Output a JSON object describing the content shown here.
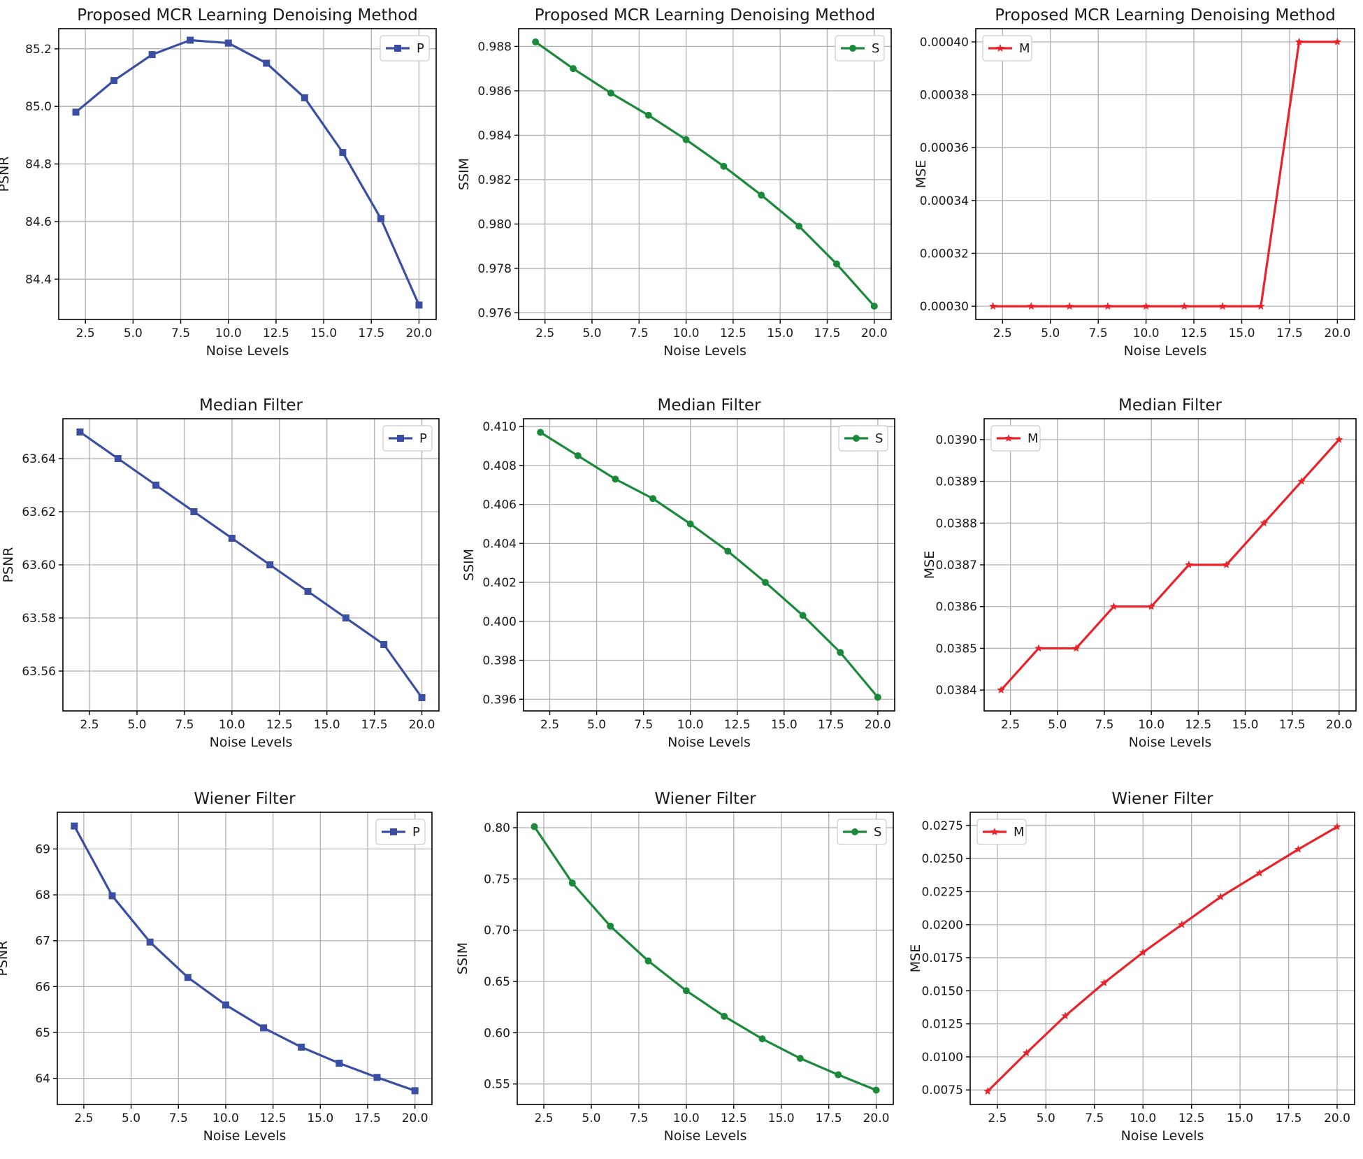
{
  "figure": {
    "colors": {
      "P": "#3a4fa3",
      "S": "#1a8a3a",
      "M": "#e8232a"
    }
  },
  "chart_data": [
    {
      "type": "line",
      "title": "Proposed MCR Learning Denoising Method",
      "xlabel": "Noise Levels",
      "ylabel": "PSNR",
      "x": [
        2,
        4,
        6,
        8,
        10,
        12,
        14,
        16,
        18,
        20
      ],
      "xlim": [
        1.1,
        20.9
      ],
      "xticks": [
        2.5,
        5.0,
        7.5,
        10.0,
        12.5,
        15.0,
        17.5,
        20.0
      ],
      "xtick_labels": [
        "2.5",
        "5.0",
        "7.5",
        "10.0",
        "12.5",
        "15.0",
        "17.5",
        "20.0"
      ],
      "ylim": [
        84.26,
        85.27
      ],
      "yticks": [
        84.4,
        84.6,
        84.8,
        85.0,
        85.2
      ],
      "ytick_labels": [
        "84.4",
        "84.6",
        "84.8",
        "85.0",
        "85.2"
      ],
      "grid": true,
      "legend": "top-right",
      "series": [
        {
          "name": "P",
          "marker": "square",
          "color": "#3a4fa3",
          "values": [
            84.98,
            85.09,
            85.18,
            85.23,
            85.22,
            85.15,
            85.03,
            84.84,
            84.61,
            84.31
          ]
        }
      ]
    },
    {
      "type": "line",
      "title": "Proposed MCR Learning Denoising Method",
      "xlabel": "Noise Levels",
      "ylabel": "SSIM",
      "x": [
        2,
        4,
        6,
        8,
        10,
        12,
        14,
        16,
        18,
        20
      ],
      "xlim": [
        1.1,
        20.9
      ],
      "xticks": [
        2.5,
        5.0,
        7.5,
        10.0,
        12.5,
        15.0,
        17.5,
        20.0
      ],
      "xtick_labels": [
        "2.5",
        "5.0",
        "7.5",
        "10.0",
        "12.5",
        "15.0",
        "17.5",
        "20.0"
      ],
      "ylim": [
        0.9757,
        0.9888
      ],
      "yticks": [
        0.976,
        0.978,
        0.98,
        0.982,
        0.984,
        0.986,
        0.988
      ],
      "ytick_labels": [
        "0.976",
        "0.978",
        "0.980",
        "0.982",
        "0.984",
        "0.986",
        "0.988"
      ],
      "grid": true,
      "legend": "top-right",
      "series": [
        {
          "name": "S",
          "marker": "circle",
          "color": "#1a8a3a",
          "values": [
            0.9882,
            0.987,
            0.9859,
            0.9849,
            0.9838,
            0.9826,
            0.9813,
            0.9799,
            0.9782,
            0.9763
          ]
        }
      ]
    },
    {
      "type": "line",
      "title": "Proposed MCR Learning Denoising Method",
      "xlabel": "Noise Levels",
      "ylabel": "MSE",
      "x": [
        2,
        4,
        6,
        8,
        10,
        12,
        14,
        16,
        18,
        20
      ],
      "xlim": [
        1.1,
        20.9
      ],
      "xticks": [
        2.5,
        5.0,
        7.5,
        10.0,
        12.5,
        15.0,
        17.5,
        20.0
      ],
      "xtick_labels": [
        "2.5",
        "5.0",
        "7.5",
        "10.0",
        "12.5",
        "15.0",
        "17.5",
        "20.0"
      ],
      "ylim": [
        0.000295,
        0.000405
      ],
      "yticks": [
        0.0003,
        0.00032,
        0.00034,
        0.00036,
        0.00038,
        0.0004
      ],
      "ytick_labels": [
        "0.00030",
        "0.00032",
        "0.00034",
        "0.00036",
        "0.00038",
        "0.00040"
      ],
      "grid": true,
      "legend": "top-left",
      "series": [
        {
          "name": "M",
          "marker": "star",
          "color": "#e8232a",
          "values": [
            0.0003,
            0.0003,
            0.0003,
            0.0003,
            0.0003,
            0.0003,
            0.0003,
            0.0003,
            0.0004,
            0.0004
          ]
        }
      ]
    },
    {
      "type": "line",
      "title": "Median Filter",
      "xlabel": "Noise Levels",
      "ylabel": "PSNR",
      "x": [
        2,
        4,
        6,
        8,
        10,
        12,
        14,
        16,
        18,
        20
      ],
      "xlim": [
        1.1,
        20.9
      ],
      "xticks": [
        2.5,
        5.0,
        7.5,
        10.0,
        12.5,
        15.0,
        17.5,
        20.0
      ],
      "xtick_labels": [
        "2.5",
        "5.0",
        "7.5",
        "10.0",
        "12.5",
        "15.0",
        "17.5",
        "20.0"
      ],
      "ylim": [
        63.545,
        63.655
      ],
      "yticks": [
        63.56,
        63.58,
        63.6,
        63.62,
        63.64
      ],
      "ytick_labels": [
        "63.56",
        "63.58",
        "63.60",
        "63.62",
        "63.64"
      ],
      "grid": true,
      "legend": "top-right",
      "series": [
        {
          "name": "P",
          "marker": "square",
          "color": "#3a4fa3",
          "values": [
            63.65,
            63.64,
            63.63,
            63.62,
            63.61,
            63.6,
            63.59,
            63.58,
            63.57,
            63.55
          ]
        }
      ]
    },
    {
      "type": "line",
      "title": "Median Filter",
      "xlabel": "Noise Levels",
      "ylabel": "SSIM",
      "x": [
        2,
        4,
        6,
        8,
        10,
        12,
        14,
        16,
        18,
        20
      ],
      "xlim": [
        1.1,
        20.9
      ],
      "xticks": [
        2.5,
        5.0,
        7.5,
        10.0,
        12.5,
        15.0,
        17.5,
        20.0
      ],
      "xtick_labels": [
        "2.5",
        "5.0",
        "7.5",
        "10.0",
        "12.5",
        "15.0",
        "17.5",
        "20.0"
      ],
      "ylim": [
        0.3954,
        0.4104
      ],
      "yticks": [
        0.396,
        0.398,
        0.4,
        0.402,
        0.404,
        0.406,
        0.408,
        0.41
      ],
      "ytick_labels": [
        "0.396",
        "0.398",
        "0.400",
        "0.402",
        "0.404",
        "0.406",
        "0.408",
        "0.410"
      ],
      "grid": true,
      "legend": "top-right",
      "series": [
        {
          "name": "S",
          "marker": "circle",
          "color": "#1a8a3a",
          "values": [
            0.4097,
            0.4085,
            0.4073,
            0.4063,
            0.405,
            0.4036,
            0.402,
            0.4003,
            0.3984,
            0.3961
          ]
        }
      ]
    },
    {
      "type": "line",
      "title": "Median Filter",
      "xlabel": "Noise Levels",
      "ylabel": "MSE",
      "x": [
        2,
        4,
        6,
        8,
        10,
        12,
        14,
        16,
        18,
        20
      ],
      "xlim": [
        1.1,
        20.9
      ],
      "xticks": [
        2.5,
        5.0,
        7.5,
        10.0,
        12.5,
        15.0,
        17.5,
        20.0
      ],
      "xtick_labels": [
        "2.5",
        "5.0",
        "7.5",
        "10.0",
        "12.5",
        "15.0",
        "17.5",
        "20.0"
      ],
      "ylim": [
        0.03835,
        0.03905
      ],
      "yticks": [
        0.0384,
        0.0385,
        0.0386,
        0.0387,
        0.0388,
        0.0389,
        0.039
      ],
      "ytick_labels": [
        "0.0384",
        "0.0385",
        "0.0386",
        "0.0387",
        "0.0388",
        "0.0389",
        "0.0390"
      ],
      "grid": true,
      "legend": "top-left",
      "series": [
        {
          "name": "M",
          "marker": "star",
          "color": "#e8232a",
          "values": [
            0.0384,
            0.0385,
            0.0385,
            0.0386,
            0.0386,
            0.0387,
            0.0387,
            0.0388,
            0.0389,
            0.039
          ]
        }
      ]
    },
    {
      "type": "line",
      "title": "Wiener Filter",
      "xlabel": "Noise Levels",
      "ylabel": "PSNR",
      "x": [
        2,
        4,
        6,
        8,
        10,
        12,
        14,
        16,
        18,
        20
      ],
      "xlim": [
        1.1,
        20.9
      ],
      "xticks": [
        2.5,
        5.0,
        7.5,
        10.0,
        12.5,
        15.0,
        17.5,
        20.0
      ],
      "xtick_labels": [
        "2.5",
        "5.0",
        "7.5",
        "10.0",
        "12.5",
        "15.0",
        "17.5",
        "20.0"
      ],
      "ylim": [
        63.43,
        69.8
      ],
      "yticks": [
        64,
        65,
        66,
        67,
        68,
        69
      ],
      "ytick_labels": [
        "64",
        "65",
        "66",
        "67",
        "68",
        "69"
      ],
      "grid": true,
      "legend": "top-right",
      "series": [
        {
          "name": "P",
          "marker": "square",
          "color": "#3a4fa3",
          "values": [
            69.5,
            67.98,
            66.97,
            66.2,
            65.6,
            65.1,
            64.68,
            64.33,
            64.02,
            63.73
          ]
        }
      ]
    },
    {
      "type": "line",
      "title": "Wiener Filter",
      "xlabel": "Noise Levels",
      "ylabel": "SSIM",
      "x": [
        2,
        4,
        6,
        8,
        10,
        12,
        14,
        16,
        18,
        20
      ],
      "xlim": [
        1.1,
        20.9
      ],
      "xticks": [
        2.5,
        5.0,
        7.5,
        10.0,
        12.5,
        15.0,
        17.5,
        20.0
      ],
      "xtick_labels": [
        "2.5",
        "5.0",
        "7.5",
        "10.0",
        "12.5",
        "15.0",
        "17.5",
        "20.0"
      ],
      "ylim": [
        0.53,
        0.815
      ],
      "yticks": [
        0.55,
        0.6,
        0.65,
        0.7,
        0.75,
        0.8
      ],
      "ytick_labels": [
        "0.55",
        "0.60",
        "0.65",
        "0.70",
        "0.75",
        "0.80"
      ],
      "grid": true,
      "legend": "top-right",
      "series": [
        {
          "name": "S",
          "marker": "circle",
          "color": "#1a8a3a",
          "values": [
            0.801,
            0.746,
            0.704,
            0.67,
            0.641,
            0.616,
            0.594,
            0.575,
            0.559,
            0.544
          ]
        }
      ]
    },
    {
      "type": "line",
      "title": "Wiener Filter",
      "xlabel": "Noise Levels",
      "ylabel": "MSE",
      "x": [
        2,
        4,
        6,
        8,
        10,
        12,
        14,
        16,
        18,
        20
      ],
      "xlim": [
        1.1,
        20.9
      ],
      "xticks": [
        2.5,
        5.0,
        7.5,
        10.0,
        12.5,
        15.0,
        17.5,
        20.0
      ],
      "xtick_labels": [
        "2.5",
        "5.0",
        "7.5",
        "10.0",
        "12.5",
        "15.0",
        "17.5",
        "20.0"
      ],
      "ylim": [
        0.0064,
        0.0285
      ],
      "yticks": [
        0.0075,
        0.01,
        0.0125,
        0.015,
        0.0175,
        0.02,
        0.0225,
        0.025,
        0.0275
      ],
      "ytick_labels": [
        "0.0075",
        "0.0100",
        "0.0125",
        "0.0150",
        "0.0175",
        "0.0200",
        "0.0225",
        "0.0250",
        "0.0275"
      ],
      "grid": true,
      "legend": "top-left",
      "series": [
        {
          "name": "M",
          "marker": "star",
          "color": "#e8232a",
          "values": [
            0.0074,
            0.0103,
            0.0131,
            0.0156,
            0.0179,
            0.02,
            0.0221,
            0.0239,
            0.0257,
            0.0274
          ]
        }
      ]
    }
  ]
}
